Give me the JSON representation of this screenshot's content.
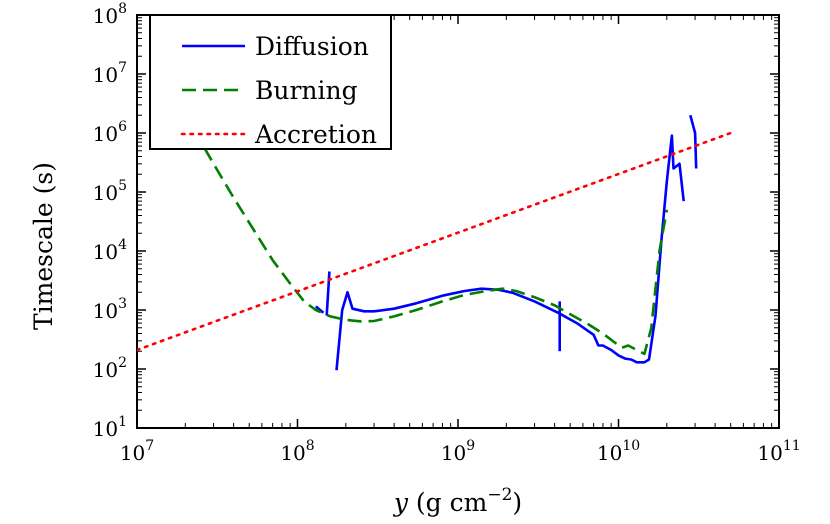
{
  "chart_data": {
    "type": "line",
    "title": "",
    "xlabel": {
      "var": "y",
      "rest": " (g cm",
      "exp": "−2",
      "close": ")"
    },
    "ylabel": "Timescale (s)",
    "xscale": "log",
    "yscale": "log",
    "xlim": [
      10000000.0,
      100000000000.0
    ],
    "ylim": [
      10,
      100000000.0
    ],
    "grid": false,
    "legend_position": "top-left",
    "x_ticks": [
      {
        "value": 10000000.0,
        "base": "10",
        "exp": "7"
      },
      {
        "value": 100000000.0,
        "base": "10",
        "exp": "8"
      },
      {
        "value": 1000000000.0,
        "base": "10",
        "exp": "9"
      },
      {
        "value": 10000000000.0,
        "base": "10",
        "exp": "10"
      },
      {
        "value": 100000000000.0,
        "base": "10",
        "exp": "11"
      }
    ],
    "y_ticks": [
      {
        "value": 10,
        "base": "10",
        "exp": "1"
      },
      {
        "value": 100,
        "base": "10",
        "exp": "2"
      },
      {
        "value": 1000,
        "base": "10",
        "exp": "3"
      },
      {
        "value": 10000,
        "base": "10",
        "exp": "4"
      },
      {
        "value": 100000,
        "base": "10",
        "exp": "5"
      },
      {
        "value": 1000000,
        "base": "10",
        "exp": "6"
      },
      {
        "value": 10000000,
        "base": "10",
        "exp": "7"
      },
      {
        "value": 100000000,
        "base": "10",
        "exp": "8"
      }
    ],
    "series": [
      {
        "name": "Diffusion",
        "color": "#0000ff",
        "style": "solid",
        "segments": [
          [
            [
              130000000.0,
              1150
            ],
            [
              145000000.0,
              900
            ]
          ],
          [
            [
              152000000.0,
              800
            ],
            [
              158000000.0,
              4500
            ]
          ],
          [
            [
              175000000.0,
              95
            ],
            [
              190000000.0,
              1000
            ],
            [
              205000000.0,
              2000
            ],
            [
              220000000.0,
              1050
            ],
            [
              260000000.0,
              950
            ],
            [
              300000000.0,
              950
            ],
            [
              400000000.0,
              1050
            ],
            [
              550000000.0,
              1300
            ],
            [
              800000000.0,
              1750
            ],
            [
              1100000000.0,
              2100
            ],
            [
              1400000000.0,
              2300
            ],
            [
              1800000000.0,
              2200
            ],
            [
              2200000000.0,
              1950
            ],
            [
              3000000000.0,
              1400
            ],
            [
              4200000000.0,
              900
            ],
            [
              5500000000.0,
              600
            ],
            [
              7000000000.0,
              380
            ],
            [
              7500000000.0,
              250
            ],
            [
              8000000000.0,
              250
            ],
            [
              9000000000.0,
              210
            ],
            [
              10000000000.0,
              170
            ],
            [
              11000000000.0,
              150
            ],
            [
              12000000000.0,
              145
            ],
            [
              13000000000.0,
              130
            ],
            [
              14500000000.0,
              130
            ],
            [
              15500000000.0,
              145
            ],
            [
              17000000000.0,
              800
            ],
            [
              18500000000.0,
              15000
            ],
            [
              20000000000.0,
              150000
            ],
            [
              21000000000.0,
              500000
            ],
            [
              21500000000.0,
              900000
            ],
            [
              22000000000.0,
              250000
            ],
            [
              24000000000.0,
              300000
            ],
            [
              25500000000.0,
              70000
            ]
          ],
          [
            [
              28000000000.0,
              2000000
            ],
            [
              30000000000.0,
              1000000
            ],
            [
              30500000000.0,
              250000
            ]
          ],
          [
            [
              4300000000.0,
              1400
            ],
            [
              4300000000.0,
              200
            ]
          ]
        ]
      },
      {
        "name": "Burning",
        "color": "#007f00",
        "style": "dashed",
        "segments": [
          [
            [
              15000000.0,
              10000000
            ],
            [
              20000000.0,
              2000000
            ],
            [
              30000000.0,
              300000
            ],
            [
              40000000.0,
              80000
            ],
            [
              55000000.0,
              20000
            ],
            [
              70000000.0,
              7000
            ],
            [
              90000000.0,
              2800
            ],
            [
              110000000.0,
              1400
            ],
            [
              130000000.0,
              1000
            ],
            [
              160000000.0,
              780
            ],
            [
              200000000.0,
              680
            ],
            [
              250000000.0,
              640
            ],
            [
              300000000.0,
              650
            ],
            [
              400000000.0,
              780
            ],
            [
              550000000.0,
              1000
            ],
            [
              800000000.0,
              1400
            ],
            [
              1100000000.0,
              1800
            ],
            [
              1500000000.0,
              2100
            ],
            [
              1900000000.0,
              2300
            ],
            [
              2300000000.0,
              2100
            ],
            [
              3000000000.0,
              1650
            ],
            [
              4000000000.0,
              1200
            ],
            [
              5000000000.0,
              850
            ],
            [
              6500000000.0,
              570
            ],
            [
              8000000000.0,
              400
            ],
            [
              9500000000.0,
              280
            ],
            [
              10500000000.0,
              230
            ],
            [
              11500000000.0,
              250
            ],
            [
              13000000000.0,
              210
            ],
            [
              14500000000.0,
              180
            ],
            [
              16000000000.0,
              500
            ],
            [
              18000000000.0,
              10000
            ],
            [
              20000000000.0,
              50000
            ]
          ]
        ]
      },
      {
        "name": "Accretion",
        "color": "#ff0000",
        "style": "dotted",
        "segments": [
          [
            [
              10000000.0,
              210
            ],
            [
              50000000000.0,
              1000000
            ]
          ]
        ]
      }
    ]
  }
}
